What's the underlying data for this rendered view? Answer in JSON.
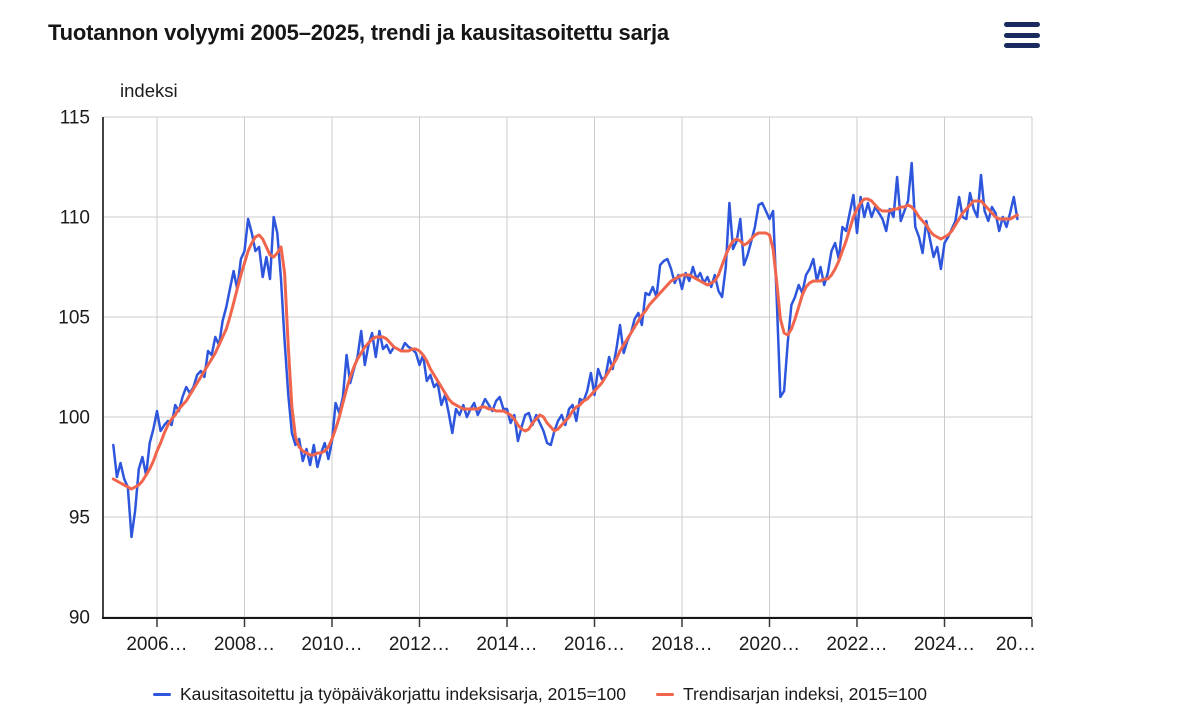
{
  "header": {
    "title": "Tuotannon volyymi 2005–2025, trendi ja kausitasoitettu sarja"
  },
  "colors": {
    "seasonally_adjusted_line": "#2e56dd",
    "trend_line": "#f0654c",
    "gridline": "#cccccc",
    "axis_line": "#161616",
    "tick_mark": "#3a3a3a",
    "text": "#1c1c1c",
    "menu_icon": "#1b2a5e"
  },
  "chart_data": {
    "type": "line",
    "title": "Tuotannon volyymi 2005–2025, trendi ja kausitasoitettu sarja",
    "y_axis_title": "indeksi",
    "ylim": [
      90,
      115
    ],
    "y_ticks": [
      115,
      110,
      105,
      100,
      95,
      90
    ],
    "x_tick_labels": [
      "2006…",
      "2008…",
      "2010…",
      "2012…",
      "2014…",
      "2016…",
      "2018…",
      "2020…",
      "2022…",
      "2024…",
      "20…"
    ],
    "x_start": "2005M01",
    "x_end": "2025M09",
    "frequency": "monthly",
    "grid": true,
    "legend_position": "bottom",
    "series": [
      {
        "name": "Kausitasoitettu ja työpäiväkorjattu indeksisarja, 2015=100",
        "color": "#2e56dd",
        "values": [
          98.6,
          97.0,
          97.7,
          96.9,
          96.5,
          94.0,
          95.3,
          97.4,
          98.0,
          97.1,
          98.7,
          99.4,
          100.3,
          99.3,
          99.6,
          99.8,
          99.6,
          100.6,
          100.3,
          101.0,
          101.5,
          101.2,
          101.5,
          102.1,
          102.3,
          102.0,
          103.3,
          103.1,
          104.0,
          103.6,
          104.8,
          105.5,
          106.4,
          107.3,
          106.4,
          107.9,
          108.3,
          109.9,
          109.2,
          108.3,
          108.5,
          107.0,
          108.0,
          106.9,
          110.0,
          109.2,
          106.9,
          103.8,
          101.1,
          99.2,
          98.6,
          98.9,
          97.8,
          98.4,
          97.6,
          98.6,
          97.5,
          98.2,
          98.7,
          97.9,
          98.8,
          100.7,
          100.2,
          101.0,
          103.1,
          101.7,
          102.4,
          103.0,
          104.3,
          102.6,
          103.6,
          104.2,
          103.0,
          104.3,
          103.4,
          103.6,
          103.2,
          103.5,
          103.4,
          103.3,
          103.7,
          103.5,
          103.4,
          103.2,
          102.6,
          103.1,
          101.8,
          102.1,
          101.5,
          101.7,
          100.6,
          101.1,
          100.2,
          99.2,
          100.4,
          100.1,
          100.6,
          100.0,
          100.4,
          100.7,
          100.1,
          100.5,
          100.9,
          100.6,
          100.3,
          100.8,
          101.0,
          100.4,
          100.4,
          99.7,
          100.1,
          98.8,
          99.5,
          100.1,
          100.2,
          99.6,
          100.1,
          99.7,
          99.3,
          98.7,
          98.6,
          99.3,
          99.8,
          100.1,
          99.6,
          100.4,
          100.6,
          99.8,
          100.9,
          100.8,
          101.3,
          102.2,
          101.1,
          102.4,
          101.9,
          102.0,
          103.0,
          102.4,
          103.4,
          104.6,
          103.2,
          103.8,
          104.2,
          104.9,
          105.2,
          104.6,
          106.2,
          106.1,
          106.5,
          106.0,
          107.6,
          107.8,
          107.9,
          107.4,
          106.7,
          107.1,
          106.4,
          107.2,
          106.8,
          107.5,
          106.9,
          107.2,
          106.7,
          107.0,
          106.5,
          107.1,
          106.3,
          106.0,
          107.5,
          110.7,
          108.4,
          108.8,
          109.9,
          107.6,
          108.1,
          108.8,
          109.5,
          110.6,
          110.7,
          110.3,
          109.9,
          110.3,
          105.8,
          101.0,
          101.3,
          103.7,
          105.6,
          106.0,
          106.6,
          106.2,
          107.1,
          107.4,
          107.9,
          106.8,
          107.5,
          106.6,
          107.2,
          108.3,
          108.7,
          107.9,
          109.5,
          109.3,
          110.2,
          111.1,
          109.2,
          111.0,
          110.0,
          110.7,
          110.0,
          110.5,
          110.2,
          109.9,
          109.3,
          110.4,
          110.0,
          112.0,
          109.8,
          110.3,
          110.8,
          112.7,
          109.5,
          109.0,
          108.2,
          109.8,
          108.9,
          108.0,
          108.5,
          107.4,
          108.7,
          109.0,
          109.4,
          109.8,
          111.0,
          110.0,
          109.9,
          111.2,
          110.4,
          110.0,
          112.1,
          110.3,
          109.8,
          110.5,
          110.2,
          109.3,
          110.0,
          109.5,
          110.2,
          111.0,
          109.9
        ]
      },
      {
        "name": "Trendisarjan indeksi, 2015=100",
        "color": "#f0654c",
        "values": [
          96.9,
          96.8,
          96.7,
          96.6,
          96.5,
          96.4,
          96.5,
          96.6,
          96.8,
          97.1,
          97.4,
          97.8,
          98.3,
          98.7,
          99.2,
          99.6,
          99.9,
          100.1,
          100.4,
          100.6,
          100.8,
          101.1,
          101.4,
          101.7,
          102.0,
          102.3,
          102.6,
          102.9,
          103.2,
          103.6,
          104.0,
          104.4,
          105.0,
          105.7,
          106.4,
          107.1,
          107.7,
          108.3,
          108.7,
          109.0,
          109.1,
          108.9,
          108.5,
          108.1,
          108.0,
          108.2,
          108.5,
          107.2,
          103.5,
          100.5,
          99.0,
          98.5,
          98.3,
          98.2,
          98.1,
          98.1,
          98.2,
          98.2,
          98.3,
          98.5,
          98.9,
          99.4,
          100.0,
          100.7,
          101.4,
          102.0,
          102.5,
          102.9,
          103.2,
          103.5,
          103.7,
          103.9,
          104.0,
          104.0,
          104.0,
          103.9,
          103.7,
          103.5,
          103.4,
          103.3,
          103.3,
          103.3,
          103.4,
          103.4,
          103.3,
          103.1,
          102.8,
          102.4,
          102.1,
          101.8,
          101.5,
          101.2,
          100.9,
          100.7,
          100.6,
          100.5,
          100.4,
          100.4,
          100.4,
          100.4,
          100.4,
          100.5,
          100.5,
          100.4,
          100.4,
          100.3,
          100.3,
          100.3,
          100.2,
          100.1,
          99.9,
          99.6,
          99.4,
          99.3,
          99.4,
          99.7,
          99.9,
          100.1,
          100.0,
          99.7,
          99.5,
          99.3,
          99.4,
          99.6,
          99.8,
          100.0,
          100.3,
          100.5,
          100.6,
          100.8,
          100.9,
          101.1,
          101.3,
          101.5,
          101.7,
          102.0,
          102.3,
          102.6,
          102.9,
          103.3,
          103.6,
          103.9,
          104.2,
          104.5,
          104.8,
          105.1,
          105.3,
          105.6,
          105.8,
          106.0,
          106.2,
          106.4,
          106.6,
          106.8,
          106.9,
          107.0,
          107.1,
          107.1,
          107.1,
          107.0,
          106.9,
          106.8,
          106.7,
          106.6,
          106.7,
          106.8,
          107.1,
          107.6,
          108.1,
          108.5,
          108.8,
          108.9,
          108.8,
          108.6,
          108.7,
          108.9,
          109.1,
          109.2,
          109.2,
          109.2,
          109.1,
          108.4,
          106.7,
          104.9,
          104.2,
          104.1,
          104.4,
          104.9,
          105.5,
          106.1,
          106.5,
          106.7,
          106.8,
          106.8,
          106.8,
          106.9,
          106.9,
          107.1,
          107.4,
          107.8,
          108.3,
          108.8,
          109.4,
          110.0,
          110.4,
          110.7,
          110.9,
          110.9,
          110.8,
          110.6,
          110.4,
          110.3,
          110.3,
          110.3,
          110.4,
          110.4,
          110.5,
          110.5,
          110.6,
          110.5,
          110.3,
          110.0,
          109.8,
          109.6,
          109.3,
          109.1,
          109.0,
          108.9,
          109.0,
          109.1,
          109.3,
          109.6,
          109.9,
          110.2,
          110.4,
          110.6,
          110.8,
          110.8,
          110.8,
          110.6,
          110.4,
          110.2,
          110.0,
          109.9,
          109.9,
          109.9,
          109.9,
          110.0,
          110.1
        ]
      }
    ]
  }
}
